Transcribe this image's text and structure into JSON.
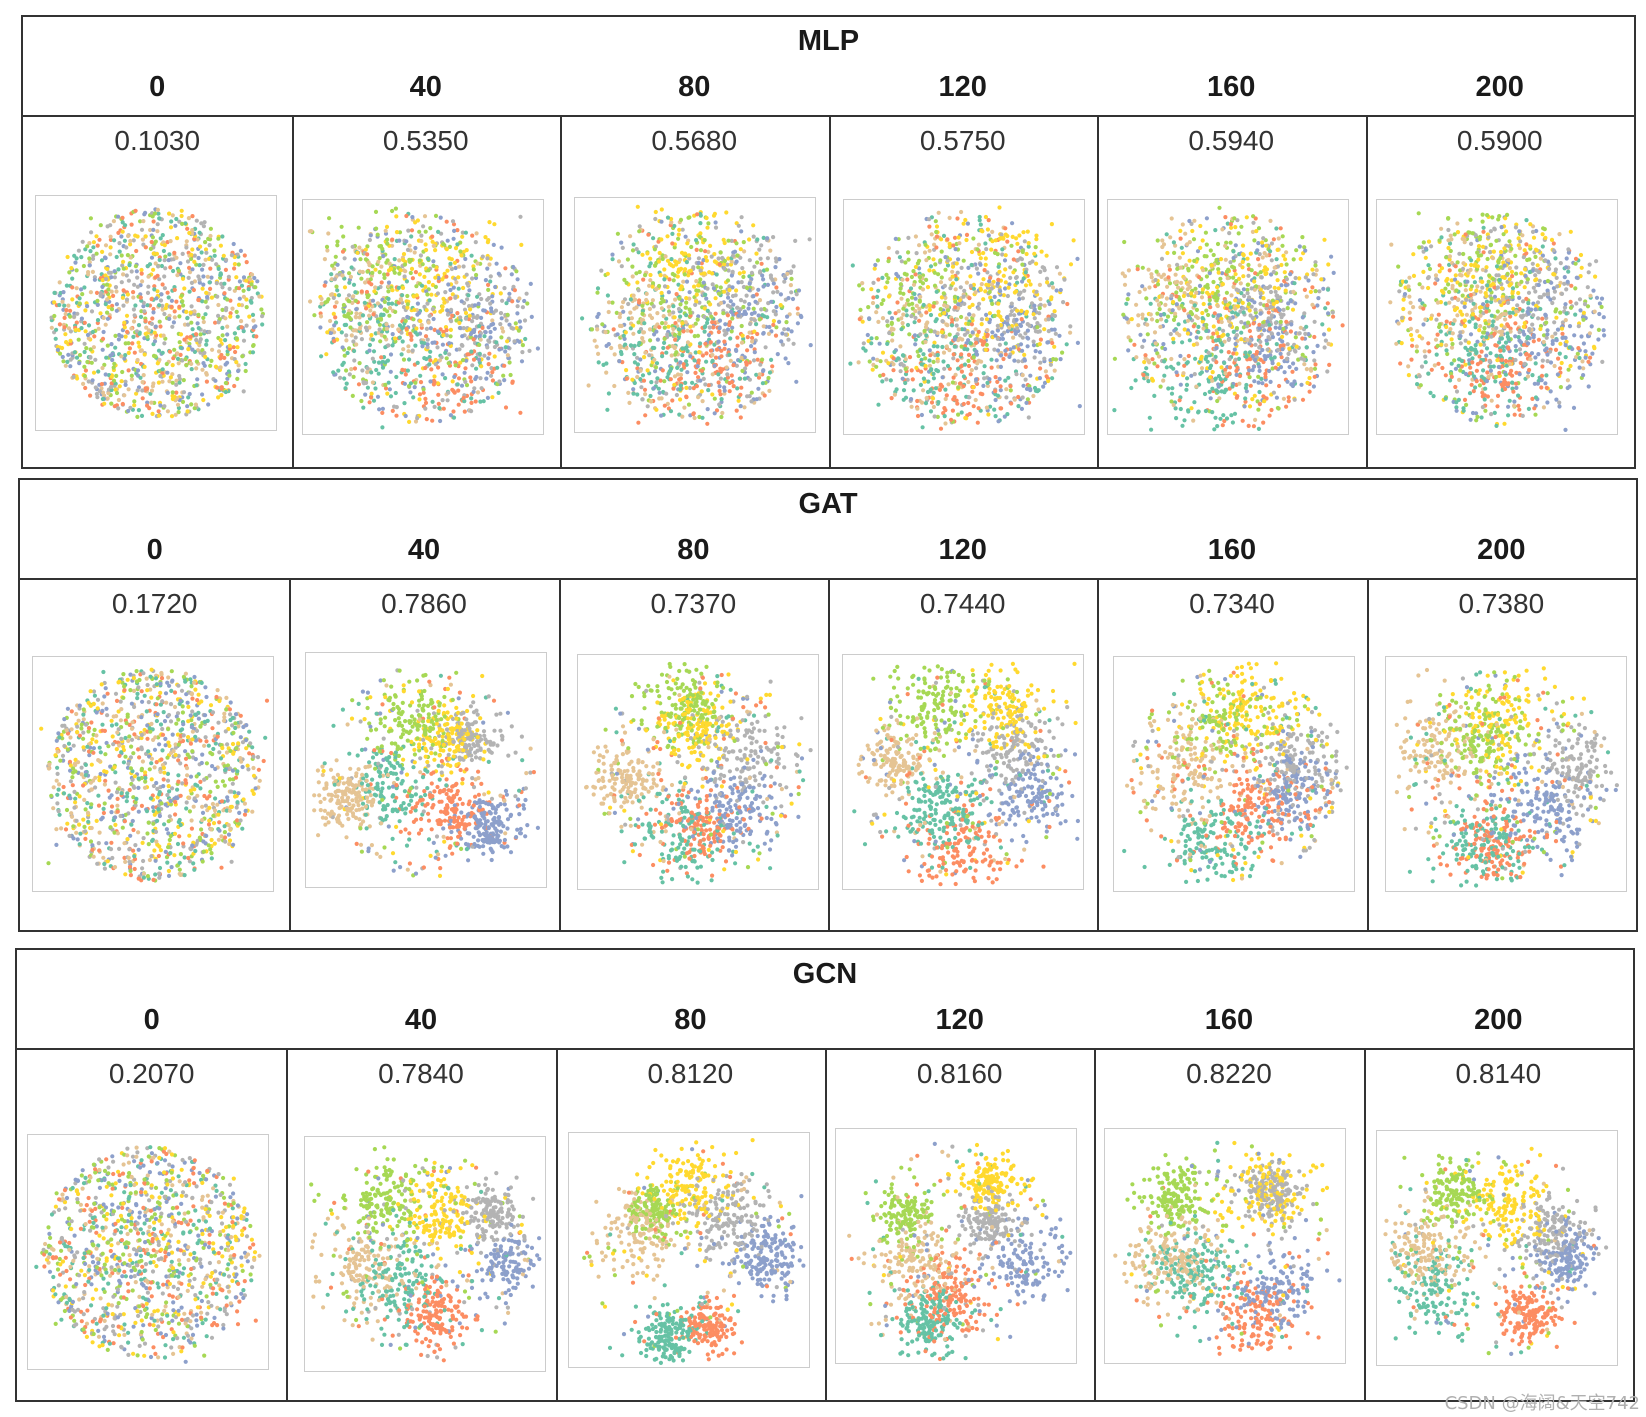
{
  "chart_data": [
    {
      "type": "scatter",
      "title": "MLP",
      "epochs": [
        "0",
        "40",
        "80",
        "120",
        "160",
        "200"
      ],
      "accuracies": [
        "0.1030",
        "0.5350",
        "0.5680",
        "0.5750",
        "0.5940",
        "0.5900"
      ],
      "plot_kind": "t-SNE embedding of node features, colored by class"
    },
    {
      "type": "scatter",
      "title": "GAT",
      "epochs": [
        "0",
        "40",
        "80",
        "120",
        "160",
        "200"
      ],
      "accuracies": [
        "0.1720",
        "0.7860",
        "0.7370",
        "0.7440",
        "0.7340",
        "0.7380"
      ],
      "plot_kind": "t-SNE embedding of node features, colored by class"
    },
    {
      "type": "scatter",
      "title": "GCN",
      "epochs": [
        "0",
        "40",
        "80",
        "120",
        "160",
        "200"
      ],
      "accuracies": [
        "0.2070",
        "0.7840",
        "0.8120",
        "0.8160",
        "0.8220",
        "0.8140"
      ],
      "plot_kind": "t-SNE embedding of node features, colored by class"
    }
  ],
  "class_colors": [
    "#8da0cb",
    "#fc8d62",
    "#66c2a5",
    "#e5c494",
    "#a6d854",
    "#ffd92f",
    "#b3b3b3",
    "#c8d94a"
  ],
  "watermark": "CSDN @海阔&天空742"
}
